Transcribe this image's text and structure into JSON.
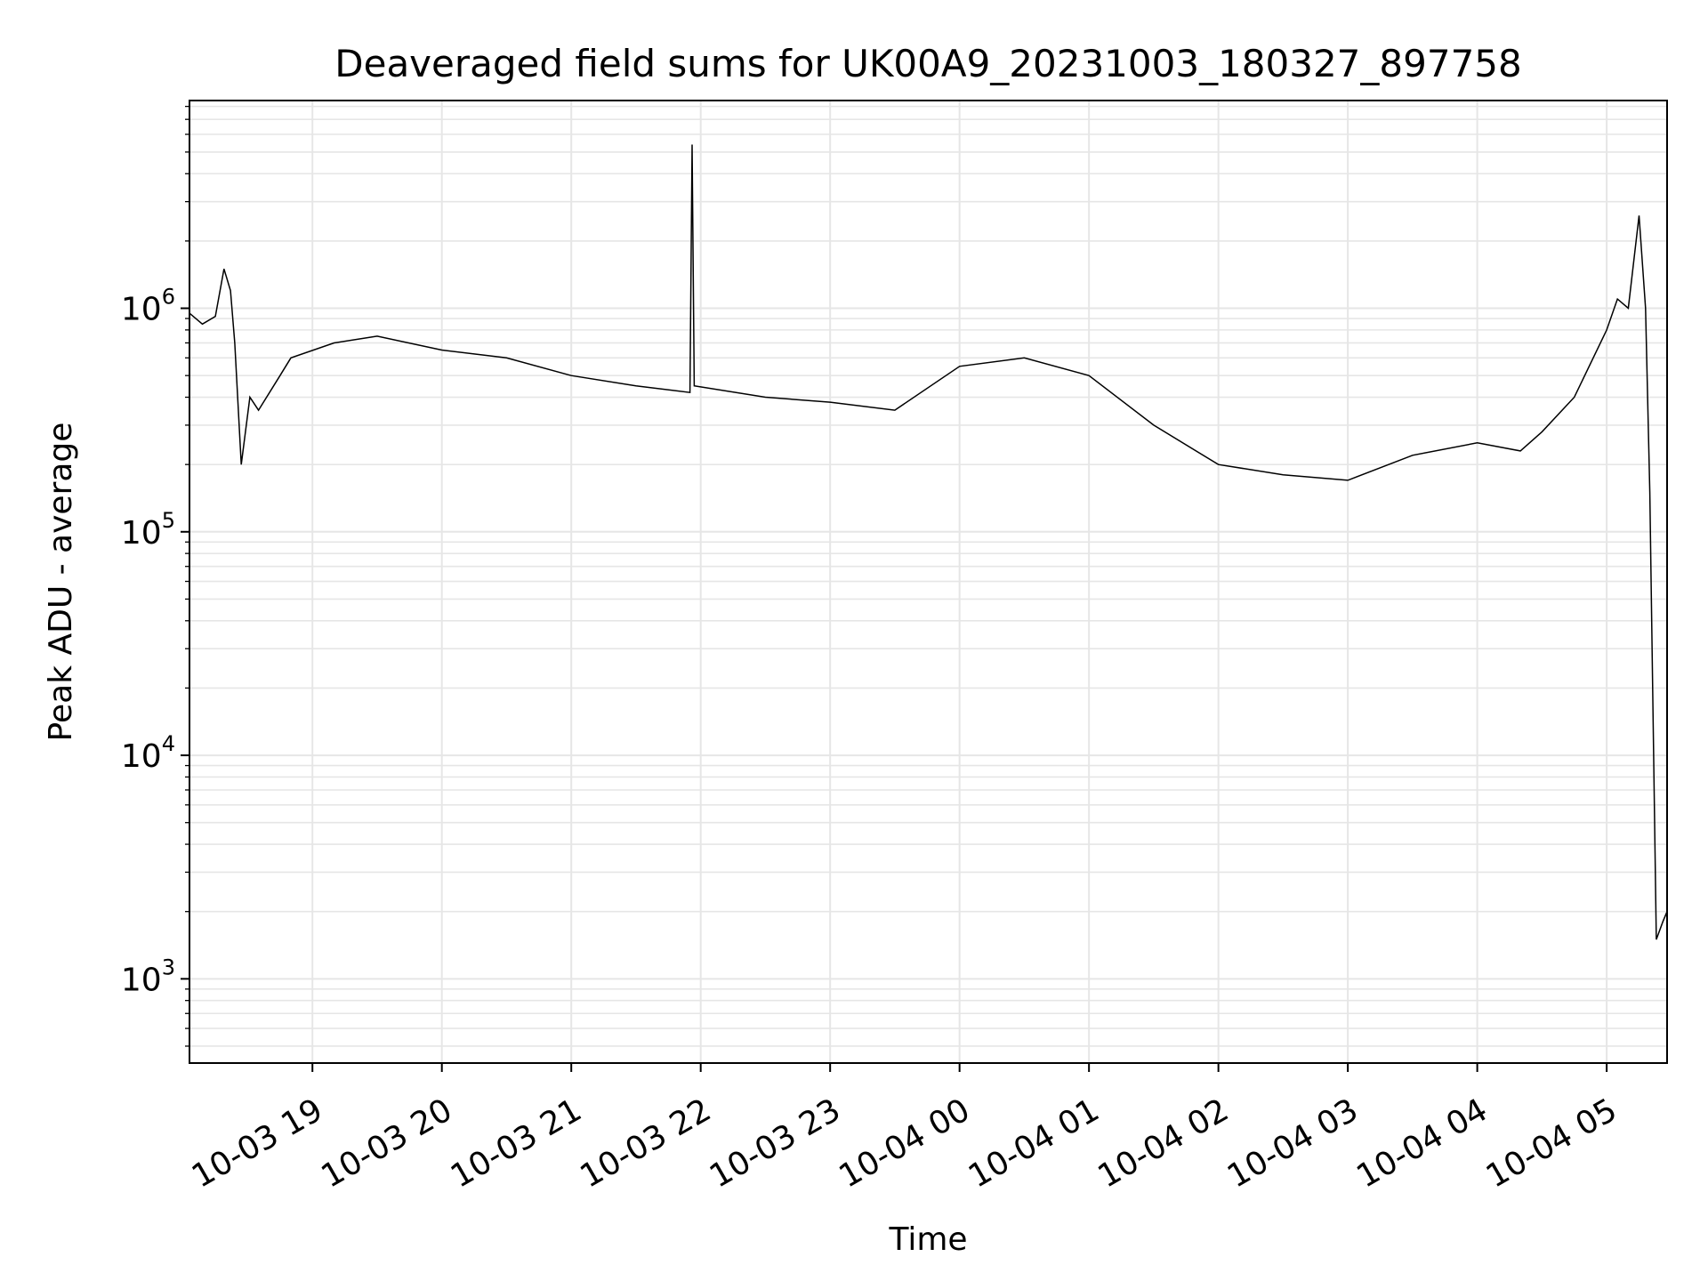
{
  "chart_data": {
    "type": "line",
    "title": "Deaveraged field sums for UK00A9_20231003_180327_897758",
    "xlabel": "Time",
    "ylabel": "Peak ADU - average",
    "yscale": "log",
    "ylim": [
      420,
      8500000
    ],
    "xlim": [
      "2023-10-03 18:03",
      "2023-10-04 05:28"
    ],
    "grid": true,
    "line_color": "#000000",
    "x_tick_labels": [
      "10-03 19",
      "10-03 20",
      "10-03 21",
      "10-03 22",
      "10-03 23",
      "10-04 00",
      "10-04 01",
      "10-04 02",
      "10-04 03",
      "10-04 04",
      "10-04 05"
    ],
    "y_tick_labels": [
      {
        "base": "10",
        "exp": "3"
      },
      {
        "base": "10",
        "exp": "4"
      },
      {
        "base": "10",
        "exp": "5"
      },
      {
        "base": "10",
        "exp": "6"
      }
    ],
    "series": [
      {
        "x": [
          "10-03 18:03",
          "10-03 18:09",
          "10-03 18:15",
          "10-03 18:19",
          "10-03 18:22",
          "10-03 18:24",
          "10-03 18:27",
          "10-03 18:31",
          "10-03 18:35",
          "10-03 18:45",
          "10-03 18:50",
          "10-03 19:10",
          "10-03 19:30",
          "10-03 20:00",
          "10-03 20:30",
          "10-03 21:00",
          "10-03 21:30",
          "10-03 21:55",
          "10-03 21:56",
          "10-03 21:57",
          "10-03 22:30",
          "10-03 23:00",
          "10-03 23:30",
          "10-04 00:00",
          "10-04 00:30",
          "10-04 01:00",
          "10-04 01:30",
          "10-04 02:00",
          "10-04 02:30",
          "10-04 03:00",
          "10-04 03:30",
          "10-04 04:00",
          "10-04 04:20",
          "10-04 04:30",
          "10-04 04:45",
          "10-04 05:00",
          "10-04 05:05",
          "10-04 05:10",
          "10-04 05:15",
          "10-04 05:18",
          "10-04 05:20",
          "10-04 05:23",
          "10-04 05:26",
          "10-04 05:28"
        ],
        "values": [
          950000,
          850000,
          920000,
          1500000,
          1200000,
          700000,
          200000,
          400000,
          350000,
          500000,
          600000,
          700000,
          750000,
          650000,
          600000,
          500000,
          450000,
          420000,
          5400000,
          450000,
          400000,
          380000,
          350000,
          550000,
          600000,
          500000,
          300000,
          200000,
          180000,
          170000,
          220000,
          250000,
          230000,
          280000,
          400000,
          800000,
          1100000,
          1000000,
          2600000,
          1000000,
          150000,
          1500,
          1800,
          2000
        ]
      }
    ]
  }
}
